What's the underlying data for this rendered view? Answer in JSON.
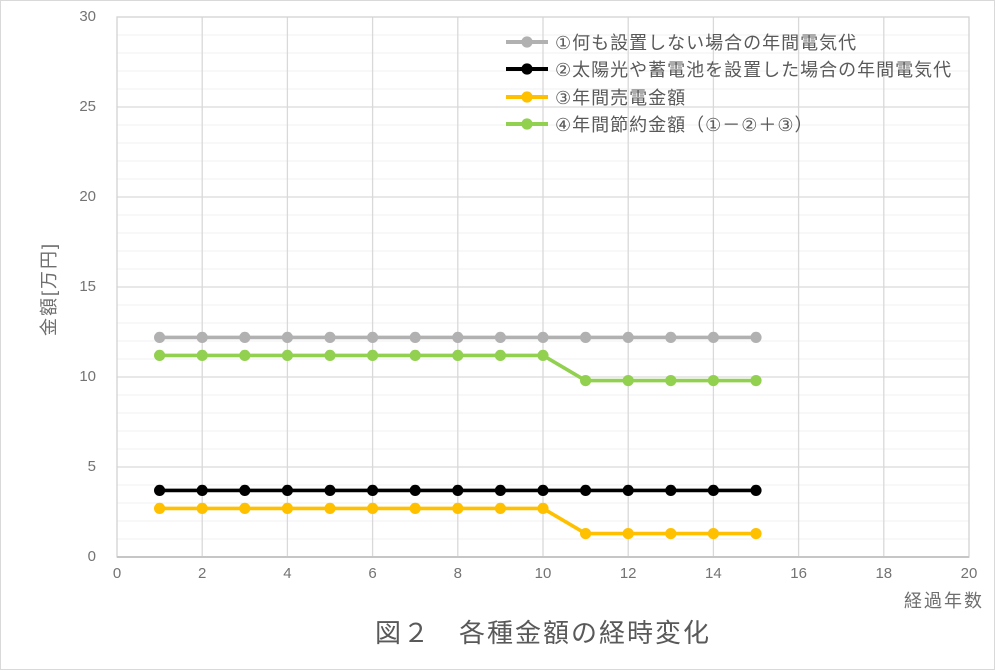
{
  "chart_data": {
    "type": "line",
    "title": "図２　各種金額の経時変化",
    "xlabel": "経過年数",
    "ylabel": "金額[万円]",
    "x": [
      1,
      2,
      3,
      4,
      5,
      6,
      7,
      8,
      9,
      10,
      11,
      12,
      13,
      14,
      15
    ],
    "xlim": [
      0,
      20
    ],
    "ylim": [
      0,
      30
    ],
    "x_ticks": [
      0,
      2,
      4,
      6,
      8,
      10,
      12,
      14,
      16,
      18,
      20
    ],
    "y_ticks": [
      0,
      5,
      10,
      15,
      20,
      25,
      30
    ],
    "grid": {
      "x_major_step": 2,
      "y_major_step": 5,
      "y_minor_step": 1,
      "major_color": "#d9d9d9",
      "minor_color": "#f1f1f1",
      "border_color": "#d3d3d3",
      "axis_color": "#c6c6c6"
    },
    "legend_position": "top-right-inside",
    "series": [
      {
        "name": "①何も設置しない場合の年間電気代",
        "color": "#b1b1b1",
        "values": [
          12.2,
          12.2,
          12.2,
          12.2,
          12.2,
          12.2,
          12.2,
          12.2,
          12.2,
          12.2,
          12.2,
          12.2,
          12.2,
          12.2,
          12.2
        ]
      },
      {
        "name": "②太陽光や蓄電池を設置した場合の年間電気代",
        "color": "#000000",
        "values": [
          3.7,
          3.7,
          3.7,
          3.7,
          3.7,
          3.7,
          3.7,
          3.7,
          3.7,
          3.7,
          3.7,
          3.7,
          3.7,
          3.7,
          3.7
        ]
      },
      {
        "name": "③年間売電金額",
        "color": "#ffc000",
        "values": [
          2.7,
          2.7,
          2.7,
          2.7,
          2.7,
          2.7,
          2.7,
          2.7,
          2.7,
          2.7,
          1.3,
          1.3,
          1.3,
          1.3,
          1.3
        ]
      },
      {
        "name": "④年間節約金額（①－②＋③）",
        "color": "#92d050",
        "values": [
          11.2,
          11.2,
          11.2,
          11.2,
          11.2,
          11.2,
          11.2,
          11.2,
          11.2,
          11.2,
          9.8,
          9.8,
          9.8,
          9.8,
          9.8
        ]
      }
    ]
  }
}
